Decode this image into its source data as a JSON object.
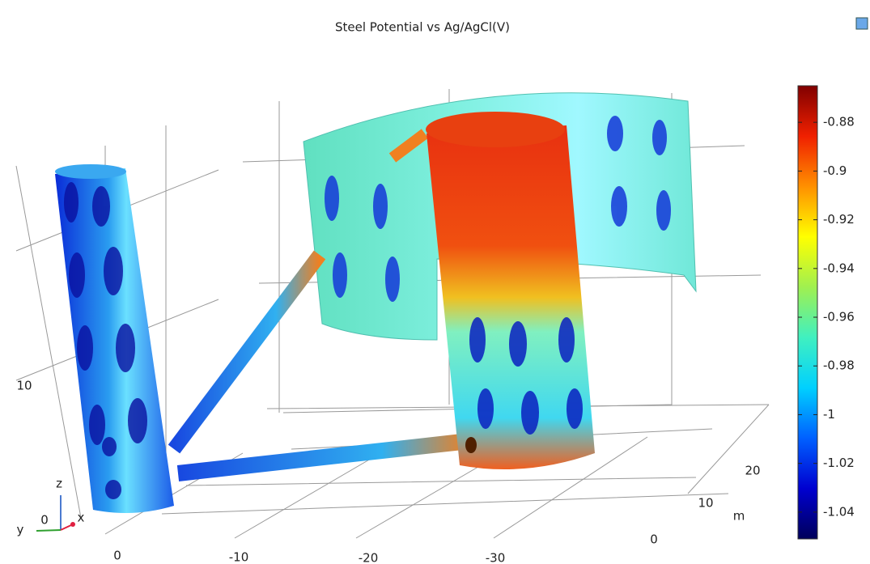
{
  "chart_data": {
    "type": "colorbar",
    "title": "Steel Potential vs Ag/AgCl(V)",
    "clim": [
      -1.051,
      -0.865
    ],
    "ticks": [
      -0.88,
      -0.9,
      -0.92,
      -0.94,
      -0.96,
      -0.98,
      -1,
      -1.02,
      -1.04
    ],
    "colormap": [
      "#00005a",
      "#0000d0",
      "#0060ff",
      "#00d0ff",
      "#40f0c0",
      "#a0f050",
      "#ffff00",
      "#ff9000",
      "#f02000",
      "#800000"
    ]
  },
  "axes_3d": {
    "x_ticks": [
      0,
      -10,
      -20,
      -30
    ],
    "y_ticks": [
      0,
      10,
      20
    ],
    "y_unit": "m",
    "z_ticks": [
      0,
      10
    ],
    "triad": {
      "z": "z",
      "y": "y",
      "x": "x"
    }
  }
}
